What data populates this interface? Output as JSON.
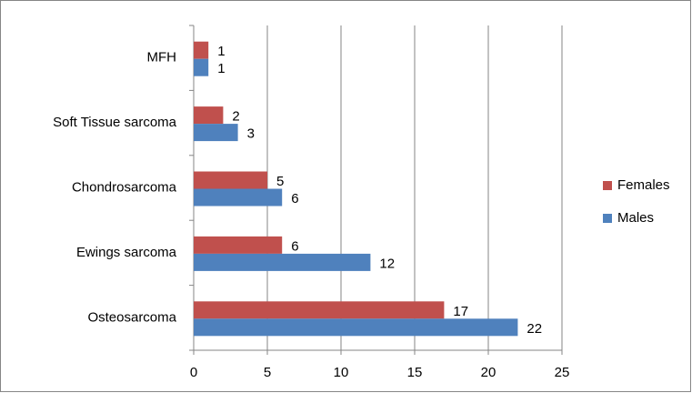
{
  "chart_data": {
    "type": "hbar",
    "categories": [
      "Osteosarcoma",
      "Ewings sarcoma",
      "Chondrosarcoma",
      "Soft Tissue sarcoma",
      "MFH"
    ],
    "series": [
      {
        "name": "Females",
        "color": "#c0504d",
        "values": [
          17,
          6,
          5,
          2,
          1
        ]
      },
      {
        "name": "Males",
        "color": "#4f81bd",
        "values": [
          22,
          12,
          6,
          3,
          1
        ]
      }
    ],
    "xlim": [
      0,
      25
    ],
    "xticks": [
      0,
      5,
      10,
      15,
      20,
      25
    ],
    "grid": true,
    "legend": "right"
  }
}
